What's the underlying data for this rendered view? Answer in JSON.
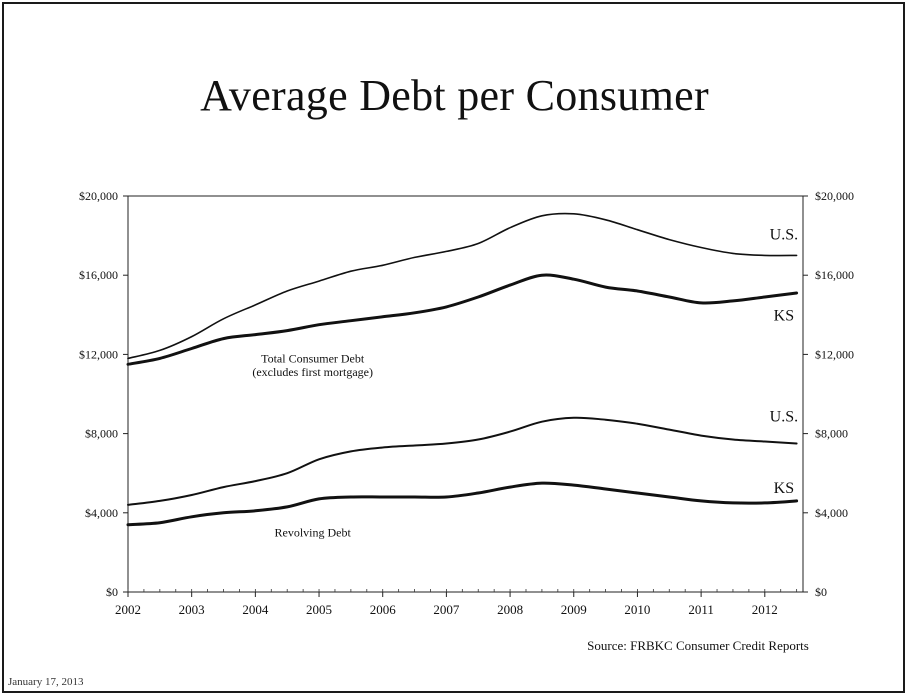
{
  "title": "Average Debt per Consumer",
  "source": "Source: FRBKC Consumer Credit Reports",
  "footer_date": "January 17, 2013",
  "chart_data": {
    "type": "line",
    "title": "Average Debt per Consumer",
    "xlabel": "",
    "ylabel": "",
    "x_ticks": [
      "2002",
      "2003",
      "2004",
      "2005",
      "2006",
      "2007",
      "2008",
      "2009",
      "2010",
      "2011",
      "2012"
    ],
    "x_range": [
      2002,
      2012.6
    ],
    "y_ticks": [
      "$0",
      "$4,000",
      "$8,000",
      "$12,000",
      "$16,000",
      "$20,000"
    ],
    "y_ticks_right": [
      "$0",
      "$4,000",
      "$8,000",
      "$12,000",
      "$16,000",
      "$20,000"
    ],
    "ylim": [
      0,
      20000
    ],
    "grid": false,
    "annotations": [
      {
        "text": "Total Consumer Debt",
        "x": 2004.9,
        "y": 11600
      },
      {
        "text": "(excludes first mortgage)",
        "x": 2004.9,
        "y": 10900
      },
      {
        "text": "Revolving Debt",
        "x": 2004.9,
        "y": 2800
      }
    ],
    "series": [
      {
        "name": "U.S.",
        "group": "Total Consumer Debt",
        "label_at": [
          2012.3,
          17800
        ],
        "stroke": "#111111",
        "width": 1.6,
        "x": [
          2002,
          2002.5,
          2003,
          2003.5,
          2004,
          2004.5,
          2005,
          2005.5,
          2006,
          2006.5,
          2007,
          2007.5,
          2008,
          2008.5,
          2009,
          2009.5,
          2010,
          2010.5,
          2011,
          2011.5,
          2012,
          2012.5
        ],
        "y": [
          11800,
          12200,
          12900,
          13800,
          14500,
          15200,
          15700,
          16200,
          16500,
          16900,
          17200,
          17600,
          18400,
          19000,
          19100,
          18800,
          18300,
          17800,
          17400,
          17100,
          17000,
          17000
        ]
      },
      {
        "name": "KS",
        "group": "Total Consumer Debt",
        "label_at": [
          2012.3,
          13700
        ],
        "stroke": "#111111",
        "width": 3,
        "x": [
          2002,
          2002.5,
          2003,
          2003.5,
          2004,
          2004.5,
          2005,
          2005.5,
          2006,
          2006.5,
          2007,
          2007.5,
          2008,
          2008.5,
          2009,
          2009.5,
          2010,
          2010.5,
          2011,
          2011.5,
          2012,
          2012.5
        ],
        "y": [
          11500,
          11800,
          12300,
          12800,
          13000,
          13200,
          13500,
          13700,
          13900,
          14100,
          14400,
          14900,
          15500,
          16000,
          15800,
          15400,
          15200,
          14900,
          14600,
          14700,
          14900,
          15100
        ]
      },
      {
        "name": "U.S.",
        "group": "Revolving Debt",
        "label_at": [
          2012.3,
          8600
        ],
        "stroke": "#111111",
        "width": 2,
        "x": [
          2002,
          2002.5,
          2003,
          2003.5,
          2004,
          2004.5,
          2005,
          2005.5,
          2006,
          2006.5,
          2007,
          2007.5,
          2008,
          2008.5,
          2009,
          2009.5,
          2010,
          2010.5,
          2011,
          2011.5,
          2012,
          2012.5
        ],
        "y": [
          4400,
          4600,
          4900,
          5300,
          5600,
          6000,
          6700,
          7100,
          7300,
          7400,
          7500,
          7700,
          8100,
          8600,
          8800,
          8700,
          8500,
          8200,
          7900,
          7700,
          7600,
          7500
        ]
      },
      {
        "name": "KS",
        "group": "Revolving Debt",
        "label_at": [
          2012.3,
          5000
        ],
        "stroke": "#111111",
        "width": 3,
        "x": [
          2002,
          2002.5,
          2003,
          2003.5,
          2004,
          2004.5,
          2005,
          2005.5,
          2006,
          2006.5,
          2007,
          2007.5,
          2008,
          2008.5,
          2009,
          2009.5,
          2010,
          2010.5,
          2011,
          2011.5,
          2012,
          2012.5
        ],
        "y": [
          3400,
          3500,
          3800,
          4000,
          4100,
          4300,
          4700,
          4800,
          4800,
          4800,
          4800,
          5000,
          5300,
          5500,
          5400,
          5200,
          5000,
          4800,
          4600,
          4500,
          4500,
          4600
        ]
      }
    ]
  }
}
